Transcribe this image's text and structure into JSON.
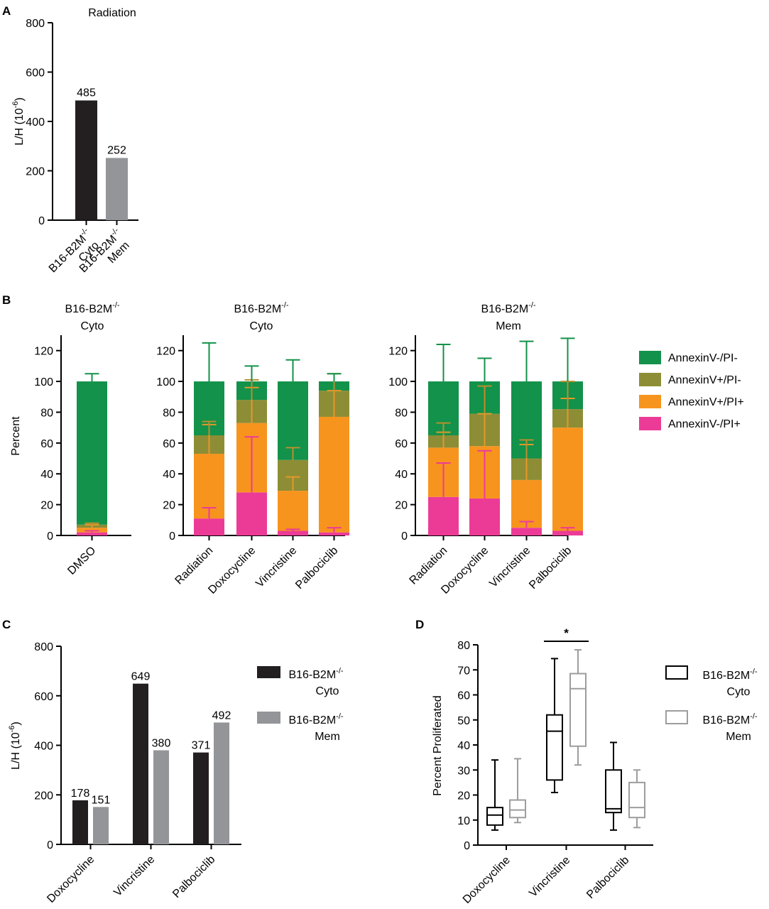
{
  "chart_data": [
    {
      "id": "A",
      "type": "bar",
      "panel_label": "A",
      "title": "Radiation",
      "ylabel_main": "L/H (10",
      "ylabel_sup": "-6",
      "ylabel_close": ")",
      "yticks": [
        "0",
        "200",
        "400",
        "600",
        "800"
      ],
      "ylim": [
        0,
        800
      ],
      "categories": [
        {
          "line1": "B16-B2M",
          "sup": "-/-",
          "line2": "Cyto"
        },
        {
          "line1": "B16-B2M",
          "sup": "-/-",
          "line2": "Mem"
        }
      ],
      "values": [
        485,
        252
      ],
      "value_labels": [
        "485",
        "252"
      ],
      "colors": [
        "#231f20",
        "#939598"
      ]
    },
    {
      "id": "B",
      "type": "bar",
      "stacked": true,
      "panel_label": "B",
      "ylabel": "Percent",
      "ylim": [
        0,
        130
      ],
      "subpanels": [
        {
          "title_line1": "B16-B2M",
          "title_sup": "-/-",
          "title_line2": "Cyto",
          "yticks": [
            "0",
            "20",
            "40",
            "60",
            "80",
            "100",
            "120"
          ],
          "categories": [
            "DMSO"
          ],
          "stacks": [
            {
              "AnnexinV-/PI+": 2,
              "AnnexinV+/PI+": 3,
              "AnnexinV+/PI-": 2,
              "AnnexinV-/PI-": 93
            }
          ],
          "error_tops": [
            {
              "AnnexinV-/PI+": 3,
              "AnnexinV+/PI+": 7,
              "AnnexinV+/PI-": 8,
              "AnnexinV-/PI-": 105
            }
          ]
        },
        {
          "title_line1": "B16-B2M",
          "title_sup": "-/-",
          "title_line2": "Cyto",
          "yticks": [
            "0",
            "20",
            "40",
            "60",
            "80",
            "100",
            "120"
          ],
          "categories": [
            "Radiation",
            "Doxocycline",
            "Vincristine",
            "Palbociclib"
          ],
          "stacks": [
            {
              "AnnexinV-/PI+": 11,
              "AnnexinV+/PI+": 42,
              "AnnexinV+/PI-": 12,
              "AnnexinV-/PI-": 35
            },
            {
              "AnnexinV-/PI+": 28,
              "AnnexinV+/PI+": 45,
              "AnnexinV+/PI-": 15,
              "AnnexinV-/PI-": 12
            },
            {
              "AnnexinV-/PI+": 3,
              "AnnexinV+/PI+": 26,
              "AnnexinV+/PI-": 20,
              "AnnexinV-/PI-": 51
            },
            {
              "AnnexinV-/PI+": 2,
              "AnnexinV+/PI+": 75,
              "AnnexinV+/PI-": 17,
              "AnnexinV-/PI-": 6
            }
          ],
          "error_tops": [
            {
              "AnnexinV-/PI+": 18,
              "AnnexinV+/PI+": 72,
              "AnnexinV+/PI-": 74,
              "AnnexinV-/PI-": 125
            },
            {
              "AnnexinV-/PI+": 64,
              "AnnexinV+/PI+": 96,
              "AnnexinV+/PI-": 101,
              "AnnexinV-/PI-": 110
            },
            {
              "AnnexinV-/PI+": 4,
              "AnnexinV+/PI+": 38,
              "AnnexinV+/PI-": 57,
              "AnnexinV-/PI-": 114
            },
            {
              "AnnexinV-/PI+": 5,
              "AnnexinV+/PI+": 94,
              "AnnexinV+/PI-": 105,
              "AnnexinV-/PI-": 105
            }
          ]
        },
        {
          "title_line1": "B16-B2M",
          "title_sup": "-/-",
          "title_line2": "Mem",
          "yticks": [
            "0",
            "20",
            "40",
            "60",
            "80",
            "100",
            "120"
          ],
          "categories": [
            "Radiation",
            "Doxocycline",
            "Vincristine",
            "Palbociclib"
          ],
          "stacks": [
            {
              "AnnexinV-/PI+": 25,
              "AnnexinV+/PI+": 32,
              "AnnexinV+/PI-": 8,
              "AnnexinV-/PI-": 35
            },
            {
              "AnnexinV-/PI+": 24,
              "AnnexinV+/PI+": 34,
              "AnnexinV+/PI-": 21,
              "AnnexinV-/PI-": 21
            },
            {
              "AnnexinV-/PI+": 5,
              "AnnexinV+/PI+": 31,
              "AnnexinV+/PI-": 14,
              "AnnexinV-/PI-": 50
            },
            {
              "AnnexinV-/PI+": 3,
              "AnnexinV+/PI+": 67,
              "AnnexinV+/PI-": 12,
              "AnnexinV-/PI-": 18
            }
          ],
          "error_tops": [
            {
              "AnnexinV-/PI+": 47,
              "AnnexinV+/PI+": 67,
              "AnnexinV+/PI-": 73,
              "AnnexinV-/PI-": 124
            },
            {
              "AnnexinV-/PI+": 55,
              "AnnexinV+/PI+": 79,
              "AnnexinV+/PI-": 97,
              "AnnexinV-/PI-": 115
            },
            {
              "AnnexinV-/PI+": 9,
              "AnnexinV+/PI+": 59,
              "AnnexinV+/PI-": 62,
              "AnnexinV-/PI-": 126
            },
            {
              "AnnexinV-/PI+": 5,
              "AnnexinV+/PI+": 89,
              "AnnexinV+/PI-": 100,
              "AnnexinV-/PI-": 128
            }
          ]
        }
      ],
      "stack_order": [
        "AnnexinV-/PI+",
        "AnnexinV+/PI+",
        "AnnexinV+/PI-",
        "AnnexinV-/PI-"
      ],
      "legend": [
        {
          "name": "AnnexinV-/PI-",
          "color": "#12924a"
        },
        {
          "name": "AnnexinV+/PI-",
          "color": "#8d8d35"
        },
        {
          "name": "AnnexinV+/PI+",
          "color": "#f7941d"
        },
        {
          "name": "AnnexinV-/PI+",
          "color": "#ec3b96"
        }
      ],
      "error_colors": {
        "AnnexinV-/PI-": "#12924a",
        "AnnexinV+/PI-": "#b98f2e",
        "AnnexinV+/PI+": "#e6982a",
        "AnnexinV-/PI+": "#ec3b96"
      }
    },
    {
      "id": "C",
      "type": "bar",
      "panel_label": "C",
      "ylabel_main": "L/H (10",
      "ylabel_sup": "-6",
      "ylabel_close": ")",
      "yticks": [
        "0",
        "200",
        "400",
        "600",
        "800"
      ],
      "ylim": [
        0,
        800
      ],
      "categories": [
        "Doxocycline",
        "Vincristine",
        "Palbociclib"
      ],
      "series": [
        {
          "name_line1": "B16-B2M",
          "name_sup": "-/-",
          "name_line2": "Cyto",
          "color": "#231f20",
          "values": [
            178,
            649,
            371
          ],
          "value_labels": [
            "178",
            "649",
            "371"
          ]
        },
        {
          "name_line1": "B16-B2M",
          "name_sup": "-/-",
          "name_line2": "Mem",
          "color": "#939598",
          "values": [
            151,
            380,
            492
          ],
          "value_labels": [
            "151",
            "380",
            "492"
          ]
        }
      ]
    },
    {
      "id": "D",
      "type": "box",
      "panel_label": "D",
      "ylabel": "Percent Proliferated",
      "yticks": [
        "0",
        "10",
        "20",
        "30",
        "40",
        "50",
        "60",
        "70",
        "80"
      ],
      "ylim": [
        0,
        80
      ],
      "categories": [
        "Doxocycline",
        "Vincristine",
        "Palbociclib"
      ],
      "significance": {
        "category": "Vincristine",
        "symbol": "*"
      },
      "series": [
        {
          "name_line1": "B16-B2M",
          "name_sup": "-/-",
          "name_line2": "Cyto",
          "color": "#000000",
          "boxes": [
            {
              "min": 6,
              "q1": 8,
              "median": 12,
              "q3": 15,
              "max": 34
            },
            {
              "min": 21,
              "q1": 26,
              "median": 45.5,
              "q3": 52,
              "max": 74.5
            },
            {
              "min": 6,
              "q1": 13,
              "median": 14.5,
              "q3": 30,
              "max": 41
            }
          ]
        },
        {
          "name_line1": "B16-B2M",
          "name_sup": "-/-",
          "name_line2": "Mem",
          "color": "#9d9d9d",
          "boxes": [
            {
              "min": 9,
              "q1": 11,
              "median": 14,
              "q3": 18,
              "max": 34.5
            },
            {
              "min": 32,
              "q1": 39.5,
              "median": 62.5,
              "q3": 68.5,
              "max": 78
            },
            {
              "min": 7,
              "q1": 11,
              "median": 15,
              "q3": 25,
              "max": 30
            }
          ]
        }
      ]
    }
  ]
}
